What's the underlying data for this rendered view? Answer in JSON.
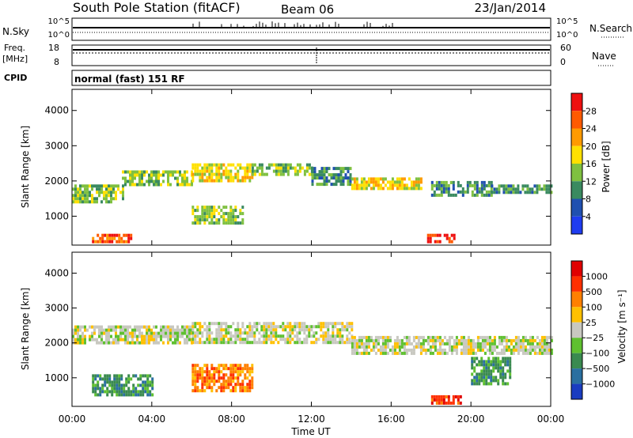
{
  "header": {
    "station": "South Pole Station (fitACF)",
    "beam": "Beam 06",
    "date": "23/Jan/2014"
  },
  "panels": {
    "nsky": {
      "label": "N.Sky",
      "right_label": "N.Search",
      "left_ticks": [
        "10^5",
        "10^0"
      ],
      "right_ticks": [
        "10^5",
        "10^0"
      ]
    },
    "freq": {
      "label_top": "Freq.",
      "label_unit": "[MHz]",
      "left_ticks": [
        "18",
        "8"
      ],
      "right_ticks": [
        "60",
        "0"
      ],
      "right_label": "Nave"
    },
    "cpid": {
      "label": "CPID",
      "mode_text": "normal (fast) 151 RF"
    }
  },
  "chart_data": [
    {
      "type": "heatmap",
      "name": "power-panel",
      "ylabel": "Slant Range [km]",
      "yticks": [
        "1000",
        "2000",
        "3000",
        "4000"
      ],
      "ylim": [
        180,
        4600
      ],
      "colorbar_label": "Power [dB]",
      "colorbar_ticks": [
        "4",
        "8",
        "12",
        "16",
        "20",
        "24",
        "28"
      ],
      "colorbar_colors": [
        "#1f3cf0",
        "#2050b0",
        "#3a8a60",
        "#7fc040",
        "#ffe000",
        "#ff9a00",
        "#ff5a00",
        "#ee1010"
      ],
      "bands": [
        {
          "x": [
            0.0,
            2.5
          ],
          "y": [
            1450,
            1900
          ],
          "level": 3
        },
        {
          "x": [
            2.5,
            6.0
          ],
          "y": [
            1900,
            2300
          ],
          "level": 3
        },
        {
          "x": [
            6.0,
            9.0
          ],
          "y": [
            2000,
            2500
          ],
          "level": 4
        },
        {
          "x": [
            9.0,
            12.0
          ],
          "y": [
            2200,
            2500
          ],
          "level": 3
        },
        {
          "x": [
            12.0,
            14.0
          ],
          "y": [
            1900,
            2400
          ],
          "level": 2
        },
        {
          "x": [
            14.0,
            17.5
          ],
          "y": [
            1800,
            2100
          ],
          "level": 4
        },
        {
          "x": [
            18.0,
            21.0
          ],
          "y": [
            1600,
            2000
          ],
          "level": 2
        },
        {
          "x": [
            21.0,
            24.0
          ],
          "y": [
            1700,
            1900
          ],
          "level": 2
        },
        {
          "x": [
            1.0,
            3.0
          ],
          "y": [
            250,
            500
          ],
          "level": 6
        },
        {
          "x": [
            6.0,
            8.5
          ],
          "y": [
            800,
            1300
          ],
          "level": 3
        },
        {
          "x": [
            17.8,
            19.2
          ],
          "y": [
            300,
            500
          ],
          "level": 7
        }
      ]
    },
    {
      "type": "heatmap",
      "name": "velocity-panel",
      "ylabel": "Slant Range [km]",
      "xlabel": "Time UT",
      "xticks": [
        "00:00",
        "04:00",
        "08:00",
        "12:00",
        "16:00",
        "20:00",
        "00:00"
      ],
      "yticks": [
        "1000",
        "2000",
        "3000",
        "4000"
      ],
      "ylim": [
        180,
        4600
      ],
      "colorbar_label": "Velocity [m s⁻¹]",
      "colorbar_ticks": [
        "1000",
        "500",
        "100",
        "25",
        "−25",
        "−100",
        "−500",
        "−1000"
      ],
      "colorbar_colors": [
        "#1a3cc0",
        "#2a6fa0",
        "#3a8a50",
        "#5fc030",
        "#c8c8c0",
        "#ffc000",
        "#ff8000",
        "#ff3000",
        "#e00000"
      ],
      "bands": [
        {
          "x": [
            0.0,
            6.0
          ],
          "y": [
            2000,
            2500
          ],
          "level": 4
        },
        {
          "x": [
            6.0,
            14.0
          ],
          "y": [
            2000,
            2600
          ],
          "level": 4
        },
        {
          "x": [
            14.0,
            24.0
          ],
          "y": [
            1700,
            2200
          ],
          "level": 4
        },
        {
          "x": [
            6.0,
            9.0
          ],
          "y": [
            600,
            1400
          ],
          "level": 6
        },
        {
          "x": [
            1.0,
            4.0
          ],
          "y": [
            500,
            1100
          ],
          "level": 2
        },
        {
          "x": [
            18.0,
            19.5
          ],
          "y": [
            250,
            500
          ],
          "level": 7
        },
        {
          "x": [
            20.0,
            22.0
          ],
          "y": [
            800,
            1600
          ],
          "level": 2
        }
      ]
    }
  ]
}
